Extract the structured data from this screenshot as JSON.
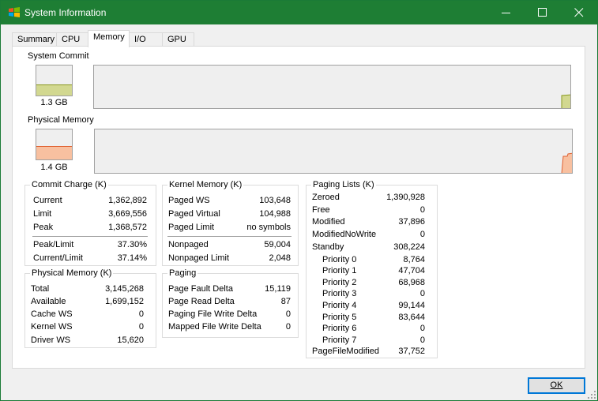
{
  "window": {
    "title": "System Information"
  },
  "tabs": [
    {
      "label": "Summary"
    },
    {
      "label": "CPU"
    },
    {
      "label": "Memory"
    },
    {
      "label": "I/O"
    },
    {
      "label": "GPU"
    }
  ],
  "active_tab": "Memory",
  "system_commit": {
    "label": "System Commit",
    "value": "1.3 GB",
    "level": 0.37,
    "color": "#d2d890",
    "edge": "#8a9a20"
  },
  "physical_memory_meter": {
    "label": "Physical Memory",
    "value": "1.4 GB",
    "level": 0.46,
    "color": "#f8c0a0",
    "edge": "#e06030"
  },
  "commit_charge": {
    "title": "Commit Charge (K)",
    "rows": [
      {
        "label": "Current",
        "value": "1,362,892"
      },
      {
        "label": "Limit",
        "value": "3,669,556"
      },
      {
        "label": "Peak",
        "value": "1,368,572"
      },
      {
        "label": "Peak/Limit",
        "value": "37.30%"
      },
      {
        "label": "Current/Limit",
        "value": "37.14%"
      }
    ]
  },
  "physical_memory": {
    "title": "Physical Memory (K)",
    "rows": [
      {
        "label": "Total",
        "value": "3,145,268"
      },
      {
        "label": "Available",
        "value": "1,699,152"
      },
      {
        "label": "Cache WS",
        "value": "0"
      },
      {
        "label": "Kernel WS",
        "value": "0"
      },
      {
        "label": "Driver WS",
        "value": "15,620"
      }
    ]
  },
  "kernel_memory": {
    "title": "Kernel Memory (K)",
    "rows": [
      {
        "label": "Paged WS",
        "value": "103,648"
      },
      {
        "label": "Paged Virtual",
        "value": "104,988"
      },
      {
        "label": "Paged Limit",
        "value": "no symbols"
      },
      {
        "label": "Nonpaged",
        "value": "59,004"
      },
      {
        "label": "Nonpaged Limit",
        "value": "2,048"
      }
    ]
  },
  "paging": {
    "title": "Paging",
    "rows": [
      {
        "label": "Page Fault Delta",
        "value": "15,119"
      },
      {
        "label": "Page Read Delta",
        "value": "87"
      },
      {
        "label": "Paging File Write Delta",
        "value": "0"
      },
      {
        "label": "Mapped File Write Delta",
        "value": "0"
      }
    ]
  },
  "paging_lists": {
    "title": "Paging Lists (K)",
    "rows": [
      {
        "label": "Zeroed",
        "value": "1,390,928"
      },
      {
        "label": "Free",
        "value": "0"
      },
      {
        "label": "Modified",
        "value": "37,896"
      },
      {
        "label": "ModifiedNoWrite",
        "value": "0"
      },
      {
        "label": "Standby",
        "value": "308,224"
      },
      {
        "label": "Priority 0",
        "value": "8,764"
      },
      {
        "label": "Priority 1",
        "value": "47,704"
      },
      {
        "label": "Priority 2",
        "value": "68,968"
      },
      {
        "label": "Priority 3",
        "value": "0"
      },
      {
        "label": "Priority 4",
        "value": "99,144"
      },
      {
        "label": "Priority 5",
        "value": "83,644"
      },
      {
        "label": "Priority 6",
        "value": "0"
      },
      {
        "label": "Priority 7",
        "value": "0"
      },
      {
        "label": "PageFileModified",
        "value": "37,752"
      }
    ]
  },
  "buttons": {
    "ok_label": "OK"
  },
  "icons": {
    "app": "windows-logo-icon",
    "minimize": "minimize-icon",
    "maximize": "maximize-icon",
    "close": "close-icon",
    "grip": "resize-grip-icon"
  }
}
